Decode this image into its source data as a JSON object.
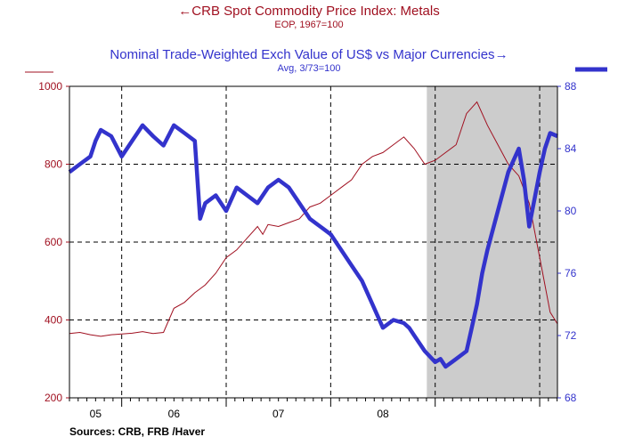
{
  "chart_data": {
    "type": "line",
    "title": "CRB Spot Commodity Price Index: Metals",
    "subtitle": "EOP, 1967=100",
    "title2": "Nominal Trade-Weighted Exch Value of US$ vs Major Currencies",
    "subtitle2": "Avg, 3/73=100",
    "arrow_left": "←",
    "arrow_right": "→",
    "source": "Sources:  CRB, FRB /Haver",
    "x_labels": [
      "05",
      "06",
      "07",
      "08"
    ],
    "ylim_left": [
      200,
      1000
    ],
    "yticks_left": [
      "200",
      "400",
      "600",
      "800",
      "1000"
    ],
    "ylim_right": [
      68,
      88
    ],
    "yticks_right": [
      "68",
      "72",
      "76",
      "80",
      "84",
      "88"
    ],
    "recession": {
      "start": 2007.92,
      "end": 2009.17
    },
    "xlim": [
      2004.5,
      2009.17
    ],
    "series": [
      {
        "name": "CRB Spot Commodity Price Index: Metals",
        "axis": "left",
        "color": "#a01020",
        "x": [
          2004.5,
          2004.6,
          2004.7,
          2004.8,
          2004.9,
          2005.0,
          2005.1,
          2005.2,
          2005.3,
          2005.4,
          2005.5,
          2005.6,
          2005.7,
          2005.75,
          2005.8,
          2005.9,
          2006.0,
          2006.1,
          2006.2,
          2006.3,
          2006.35,
          2006.4,
          2006.5,
          2006.6,
          2006.7,
          2006.8,
          2006.9,
          2007.0,
          2007.1,
          2007.2,
          2007.3,
          2007.4,
          2007.5,
          2007.6,
          2007.7,
          2007.8,
          2007.9,
          2008.0,
          2008.1,
          2008.2,
          2008.3,
          2008.4,
          2008.5,
          2008.6,
          2008.7,
          2008.8,
          2008.9,
          2009.0,
          2009.1,
          2009.17
        ],
        "values": [
          365,
          368,
          362,
          358,
          362,
          364,
          366,
          370,
          365,
          368,
          430,
          445,
          470,
          480,
          490,
          520,
          560,
          580,
          610,
          640,
          620,
          645,
          640,
          650,
          660,
          690,
          700,
          720,
          740,
          760,
          800,
          820,
          830,
          850,
          870,
          840,
          800,
          810,
          830,
          850,
          930,
          960,
          900,
          850,
          800,
          770,
          700,
          560,
          420,
          390
        ]
      },
      {
        "name": "Nominal Trade-Weighted Exch Value of US$ vs Major Currencies",
        "axis": "right",
        "color": "#3333cc",
        "x": [
          2004.5,
          2004.6,
          2004.7,
          2004.75,
          2004.8,
          2004.9,
          2005.0,
          2005.1,
          2005.15,
          2005.2,
          2005.3,
          2005.4,
          2005.5,
          2005.6,
          2005.7,
          2005.75,
          2005.8,
          2005.9,
          2006.0,
          2006.1,
          2006.2,
          2006.3,
          2006.4,
          2006.5,
          2006.6,
          2006.7,
          2006.8,
          2006.9,
          2007.0,
          2007.1,
          2007.2,
          2007.3,
          2007.4,
          2007.5,
          2007.6,
          2007.7,
          2007.75,
          2007.8,
          2007.9,
          2008.0,
          2008.05,
          2008.1,
          2008.2,
          2008.3,
          2008.35,
          2008.4,
          2008.45,
          2008.5,
          2008.6,
          2008.7,
          2008.8,
          2008.85,
          2008.9,
          2009.0,
          2009.05,
          2009.1,
          2009.17
        ],
        "values": [
          82.5,
          83.0,
          83.5,
          84.5,
          85.2,
          84.8,
          83.5,
          84.5,
          85.0,
          85.5,
          84.8,
          84.2,
          85.5,
          85.0,
          84.5,
          79.5,
          80.5,
          81.0,
          80.0,
          81.5,
          81.0,
          80.5,
          81.5,
          82.0,
          81.5,
          80.5,
          79.5,
          79.0,
          78.5,
          77.5,
          76.5,
          75.5,
          74.0,
          72.5,
          73.0,
          72.8,
          72.5,
          72.0,
          71.0,
          70.3,
          70.5,
          70.0,
          70.5,
          71.0,
          72.5,
          74.0,
          76.0,
          77.5,
          80.0,
          82.5,
          84.0,
          82.0,
          79.0,
          82.5,
          84.0,
          85.0,
          84.8
        ]
      }
    ]
  }
}
